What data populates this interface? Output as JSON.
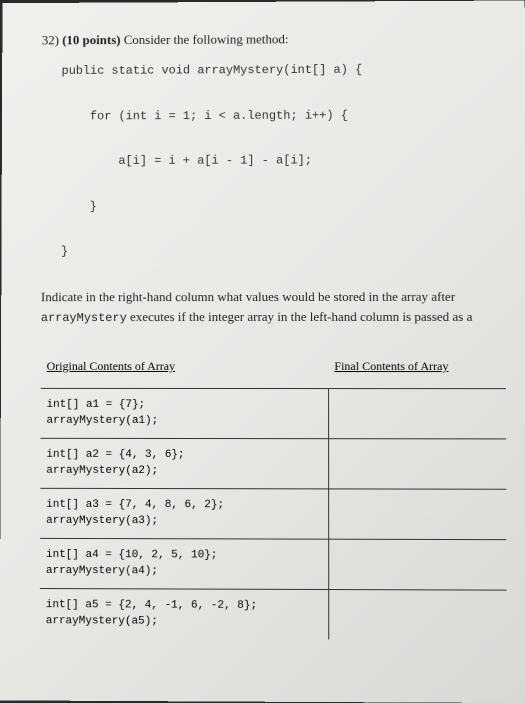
{
  "question": {
    "number": "32)",
    "points": "(10 points)",
    "prompt": "Consider the following method:"
  },
  "code": "public static void arrayMystery(int[] a) {\n\n    for (int i = 1; i < a.length; i++) {\n\n        a[i] = i + a[i - 1] - a[i];\n\n    }\n\n}",
  "instruction_part1": "Indicate in the right-hand column what values would be stored in the array after ",
  "instruction_code": "arrayMystery",
  "instruction_part2": " executes if the integer array in the left-hand column is passed as a",
  "table": {
    "headers": {
      "left": "Original Contents of Array",
      "right": "Final Contents of Array"
    },
    "rows": [
      {
        "left": "int[] a1 = {7};\narrayMystery(a1);",
        "right": ""
      },
      {
        "left": "int[] a2 = {4, 3, 6};\narrayMystery(a2);",
        "right": ""
      },
      {
        "left": "int[] a3 = {7, 4, 8, 6, 2};\narrayMystery(a3);",
        "right": ""
      },
      {
        "left": "int[] a4 = {10, 2, 5, 10};\narrayMystery(a4);",
        "right": ""
      },
      {
        "left": "int[] a5 = {2, 4, -1, 6, -2, 8};\narrayMystery(a5);",
        "right": ""
      }
    ]
  },
  "colors": {
    "text": "#222222",
    "border": "#333333",
    "page_bg": "#e8e8e5"
  },
  "fonts": {
    "serif": "Times New Roman",
    "mono": "Courier New",
    "header_size": 13,
    "code_size": 12,
    "table_size": 11
  }
}
